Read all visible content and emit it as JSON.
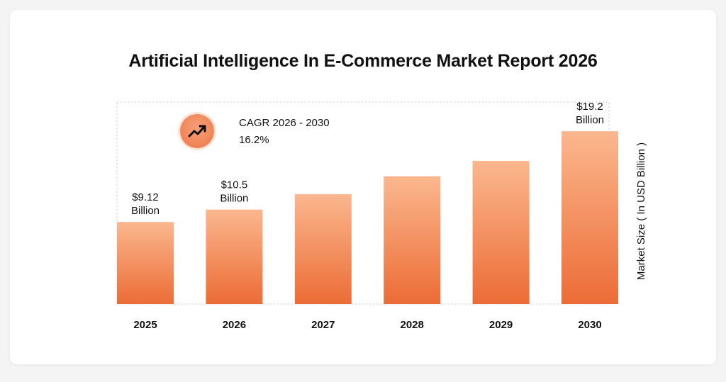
{
  "chart_data": {
    "type": "bar",
    "title": "Artificial Intelligence In E-Commerce Market Report 2026",
    "categories": [
      "2025",
      "2026",
      "2027",
      "2028",
      "2029",
      "2030"
    ],
    "values": [
      9.12,
      10.5,
      12.2,
      14.2,
      15.9,
      19.2
    ],
    "data_labels": [
      {
        "index": 0,
        "line1": "$9.12",
        "line2": "Billion"
      },
      {
        "index": 1,
        "line1": "$10.5",
        "line2": "Billion"
      },
      {
        "index": 5,
        "line1": "$19.2",
        "line2": "Billion"
      }
    ],
    "ylabel": "Market Size  ( In USD Billion )",
    "xlabel": "",
    "ylim": [
      0,
      21
    ],
    "cagr": {
      "label": "CAGR 2026 - 2030",
      "value": "16.2%"
    },
    "colors": {
      "bar_top": "#fbb78e",
      "bar_bottom": "#ec6c36",
      "frame": "#c9c9d4"
    }
  }
}
